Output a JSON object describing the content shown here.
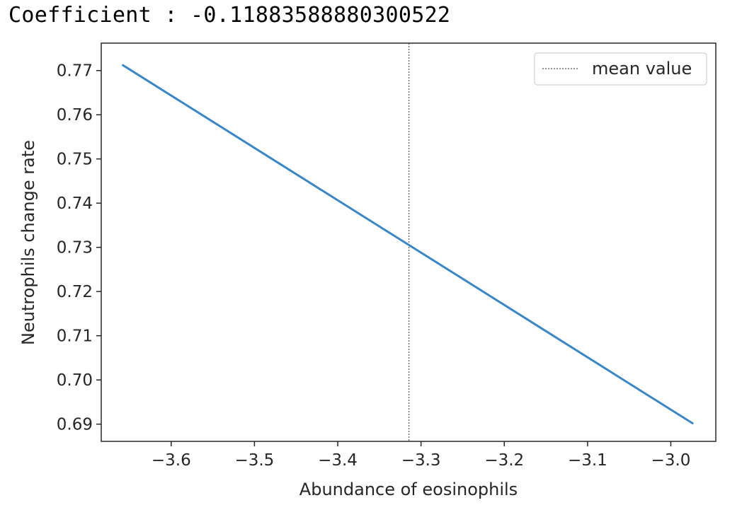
{
  "output": {
    "coefficient_text": "Coefficient : -0.11883588880300522"
  },
  "chart_data": {
    "type": "line",
    "xlabel": "Abundance of eosinophils",
    "ylabel": "Neutrophils change rate",
    "xlim": [
      -3.684,
      -2.946
    ],
    "ylim": [
      0.6861,
      0.7762
    ],
    "x_ticks": [
      -3.6,
      -3.5,
      -3.4,
      -3.3,
      -3.2,
      -3.1,
      -3.0
    ],
    "x_tick_labels": [
      "−3.6",
      "−3.5",
      "−3.4",
      "−3.3",
      "−3.2",
      "−3.1",
      "−3.0"
    ],
    "y_ticks": [
      0.69,
      0.7,
      0.71,
      0.72,
      0.73,
      0.74,
      0.75,
      0.76,
      0.77
    ],
    "y_tick_labels": [
      "0.69",
      "0.70",
      "0.71",
      "0.72",
      "0.73",
      "0.74",
      "0.75",
      "0.76",
      "0.77"
    ],
    "series": [
      {
        "x": [
          -3.658,
          -2.974
        ],
        "y": [
          0.7712,
          0.6902
        ],
        "color": "#3a87c6"
      }
    ],
    "mean_line": {
      "x": -3.3145,
      "label": "mean value",
      "color": "#555555",
      "style": "dotted"
    },
    "legend": {
      "position": "top-right",
      "entries": [
        "mean value"
      ]
    },
    "grid": false
  }
}
